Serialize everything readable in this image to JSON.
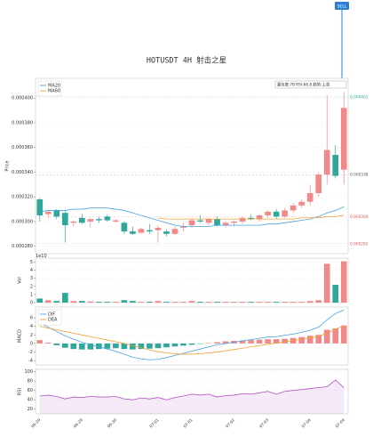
{
  "chart_data": [
    {
      "type": "candlestick",
      "title": "HOTUSDT  4H  射击之星",
      "ylabel": "Price",
      "annotation": "SELL",
      "info": "置信度:78  RSI:66.8  趋势:上涨",
      "up_color": "#f08a8a",
      "down_color": "#2fa89b",
      "grid": true,
      "legend": "upper left",
      "ylim": [
        0.000274,
        0.000416
      ],
      "yticks": [
        {
          "value": 0.00028,
          "label": "0.000280"
        },
        {
          "value": 0.0003,
          "label": "0.000300"
        },
        {
          "value": 0.00032,
          "label": "0.000320"
        },
        {
          "value": 0.00034,
          "label": "0.000340"
        },
        {
          "value": 0.00036,
          "label": "0.000360"
        },
        {
          "value": 0.00038,
          "label": "0.000380"
        },
        {
          "value": 0.0004,
          "label": "0.000400"
        }
      ],
      "price_labels": [
        {
          "value": 0.000401,
          "color": "#2fa89b"
        },
        {
          "value": 0.000338,
          "color": "#555555"
        },
        {
          "value": 0.000304,
          "color": "#e05555"
        },
        {
          "value": 0.000282,
          "color": "#e05555"
        }
      ],
      "open": [
        0.000318,
        0.000306,
        0.000309,
        0.000307,
        0.000299,
        0.000303,
        0.0003,
        0.000302,
        0.000304,
        0.0003,
        0.000299,
        0.000292,
        0.000291,
        0.000293,
        0.000293,
        0.000292,
        0.00029,
        0.000295,
        0.000297,
        0.000301,
        0.000299,
        0.000302,
        0.000297,
        0.000299,
        0.0003,
        0.000303,
        0.000302,
        0.000305,
        0.000308,
        0.000304,
        0.000309,
        0.000313,
        0.000316,
        0.000323,
        0.000338,
        0.000354,
        0.000342
      ],
      "high": [
        0.000319,
        0.000309,
        0.00031,
        0.000309,
        0.000301,
        0.000306,
        0.000303,
        0.000304,
        0.000306,
        0.000302,
        0.0003,
        0.000296,
        0.000295,
        0.000298,
        0.000297,
        0.000294,
        0.000296,
        0.000299,
        0.000302,
        0.000305,
        0.000303,
        0.000304,
        0.0003,
        0.000301,
        0.000304,
        0.000306,
        0.000306,
        0.000309,
        0.00031,
        0.000311,
        0.000315,
        0.000318,
        0.00033,
        0.00034,
        0.000402,
        0.000362,
        0.000405
      ],
      "low": [
        0.0003,
        0.000303,
        0.000302,
        0.000283,
        0.000296,
        0.000298,
        0.000295,
        0.000299,
        0.0003,
        0.000299,
        0.00029,
        0.000289,
        0.00029,
        0.00029,
        0.000283,
        0.000288,
        0.000289,
        0.000292,
        0.000295,
        0.000299,
        0.000297,
        0.000296,
        0.000295,
        0.000296,
        0.000298,
        0.000301,
        0.0003,
        0.000303,
        0.000302,
        0.000303,
        0.000307,
        0.000311,
        0.000313,
        0.00032,
        0.00033,
        0.000335,
        0.00033
      ],
      "close": [
        0.000305,
        0.000308,
        0.000304,
        0.000297,
        0.0003,
        0.000299,
        0.000302,
        0.000301,
        0.000301,
        0.000301,
        0.000292,
        0.00029,
        0.000294,
        0.000292,
        0.000295,
        0.00029,
        0.000294,
        0.000296,
        0.000301,
        0.0003,
        0.000302,
        0.000297,
        0.000299,
        0.0003,
        0.000303,
        0.000302,
        0.000305,
        0.000308,
        0.000304,
        0.000309,
        0.000313,
        0.000316,
        0.000323,
        0.000338,
        0.000358,
        0.000337,
        0.000392
      ],
      "series": [
        {
          "name": "MA20",
          "color": "#4aa3df",
          "values": [
            0.000308,
            0.000309,
            0.000309,
            0.000309,
            0.00031,
            0.00031,
            0.000311,
            0.000311,
            0.000311,
            0.00031,
            0.000309,
            0.000307,
            0.000305,
            0.000303,
            0.000301,
            0.000299,
            0.000297,
            0.000296,
            0.000296,
            0.000296,
            0.000296,
            0.000297,
            0.000297,
            0.000297,
            0.000297,
            0.000297,
            0.000297,
            0.000298,
            0.000298,
            0.000299,
            0.0003,
            0.000301,
            0.000302,
            0.000304,
            0.000307,
            0.000309,
            0.000312
          ]
        },
        {
          "name": "MA60",
          "color": "#f0a030",
          "values": [
            null,
            null,
            null,
            null,
            null,
            null,
            null,
            null,
            null,
            null,
            null,
            null,
            null,
            null,
            0.000303,
            0.000302,
            0.000302,
            0.000302,
            0.000302,
            0.000302,
            0.000302,
            0.000302,
            0.000302,
            0.000302,
            0.000302,
            0.000302,
            0.000302,
            0.000302,
            0.000302,
            0.000302,
            0.000302,
            0.000303,
            0.000303,
            0.000303,
            0.000304,
            0.000304,
            0.000305
          ]
        }
      ]
    },
    {
      "type": "bar",
      "ylabel": "Vol",
      "offset_label": "1e10",
      "grid": true,
      "ylim": [
        0,
        5.5
      ],
      "yticks": [
        0,
        1,
        2,
        3,
        4,
        5
      ],
      "values": [
        0.5,
        0.3,
        0.2,
        1.2,
        0.2,
        0.2,
        0.15,
        0.1,
        0.1,
        0.1,
        0.3,
        0.2,
        0.1,
        0.1,
        0.2,
        0.1,
        0.1,
        0.1,
        0.2,
        0.1,
        0.1,
        0.1,
        0.1,
        0.1,
        0.1,
        0.1,
        0.1,
        0.1,
        0.1,
        0.1,
        0.1,
        0.1,
        0.2,
        0.3,
        4.8,
        2.2,
        5.1
      ]
    },
    {
      "type": "macd",
      "ylabel": "MACD",
      "grid": true,
      "legend": "upper left",
      "up_color": "#f08a8a",
      "down_color": "#2fa89b",
      "ylim": [
        -5,
        8.5
      ],
      "yticks": [
        -4,
        -2,
        0,
        2,
        4,
        6
      ],
      "histogram": [
        0.8,
        0.2,
        -0.4,
        -1.0,
        -1.3,
        -1.4,
        -1.4,
        -1.3,
        -1.2,
        -1.1,
        -1.3,
        -1.4,
        -1.3,
        -1.2,
        -1.1,
        -0.9,
        -0.7,
        -0.5,
        -0.3,
        -0.1,
        0.1,
        0.3,
        0.5,
        0.6,
        0.7,
        0.8,
        0.9,
        1.0,
        1.0,
        1.1,
        1.3,
        1.5,
        1.8,
        2.0,
        3.2,
        3.5,
        4.2
      ],
      "series": [
        {
          "name": "DIF",
          "color": "#4aa3df",
          "values": [
            4.8,
            3.8,
            2.8,
            1.8,
            1.0,
            0.3,
            -0.3,
            -0.8,
            -1.3,
            -1.8,
            -2.5,
            -3.2,
            -3.6,
            -3.8,
            -3.7,
            -3.3,
            -2.8,
            -2.3,
            -1.8,
            -1.3,
            -0.8,
            -0.3,
            0,
            0.3,
            0.6,
            0.9,
            1.2,
            1.5,
            1.6,
            1.9,
            2.2,
            2.6,
            3.1,
            3.8,
            5.5,
            7.0,
            7.8
          ]
        },
        {
          "name": "DEA",
          "color": "#f0a030",
          "values": [
            4.0,
            3.6,
            3.2,
            2.8,
            2.4,
            2.0,
            1.6,
            1.2,
            0.8,
            0.4,
            0,
            -0.5,
            -1.0,
            -1.5,
            -1.9,
            -2.2,
            -2.4,
            -2.5,
            -2.5,
            -2.4,
            -2.2,
            -2.0,
            -1.7,
            -1.4,
            -1.1,
            -0.8,
            -0.5,
            -0.2,
            0.1,
            0.4,
            0.7,
            1.0,
            1.3,
            1.7,
            2.4,
            3.3,
            4.2
          ]
        }
      ]
    },
    {
      "type": "line",
      "ylabel": "RSI",
      "grid": true,
      "ylim": [
        10,
        105
      ],
      "yticks": [
        20,
        40,
        60,
        80,
        100
      ],
      "categories": [
        "06-29",
        null,
        null,
        null,
        null,
        "06-29",
        null,
        null,
        null,
        "06-30",
        null,
        null,
        null,
        null,
        "07-01",
        null,
        null,
        null,
        "07-01",
        null,
        null,
        null,
        null,
        "07-02",
        null,
        null,
        null,
        "07-03",
        null,
        null,
        null,
        null,
        "07-04",
        null,
        null,
        null,
        "07-04"
      ],
      "series": [
        {
          "color": "#b050c0",
          "values": [
            48,
            50,
            47,
            42,
            46,
            45,
            47,
            46,
            46,
            47,
            42,
            40,
            44,
            42,
            45,
            40,
            45,
            48,
            52,
            50,
            52,
            46,
            49,
            50,
            53,
            52,
            55,
            58,
            52,
            58,
            60,
            62,
            64,
            66,
            68,
            82,
            66
          ]
        }
      ]
    }
  ]
}
